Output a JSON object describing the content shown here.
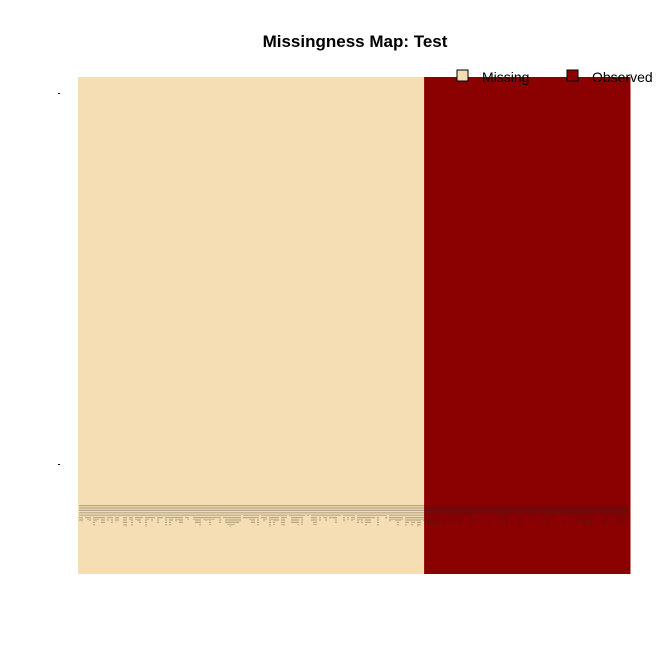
{
  "chart_data": {
    "type": "heatmap",
    "title": "Missingness Map: Test",
    "xlabel": "",
    "ylabel": "",
    "categories": [
      "Missing",
      "Observed"
    ],
    "legend": [
      {
        "name": "Missing",
        "color": "#F5DEB3"
      },
      {
        "name": "Observed",
        "color": "#8B0000"
      }
    ],
    "legend_position": "top-right",
    "grid": false,
    "columns": [
      {
        "status": "Missing",
        "fraction": 0.627
      },
      {
        "status": "Observed",
        "fraction": 0.373
      }
    ],
    "row_label_ticks": 2
  },
  "colors": {
    "missing": "#F5DEB3",
    "observed": "#8B0000"
  }
}
